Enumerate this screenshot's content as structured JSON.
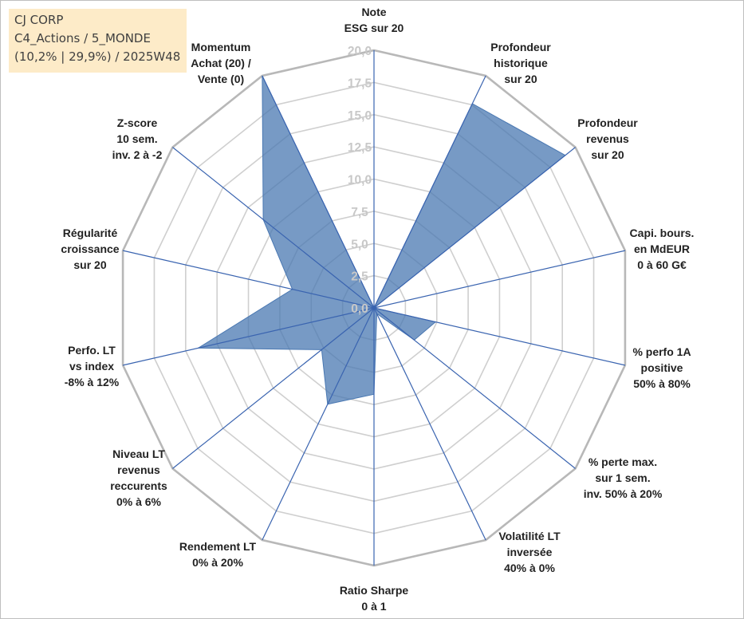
{
  "info_box": {
    "line1": "CJ CORP",
    "line2": "C4_Actions / 5_MONDE",
    "line3": "(10,2% | 29,9%) / 2025W48"
  },
  "chart_data": {
    "type": "radar",
    "title": "",
    "rmax": 20,
    "ticks": [
      "0,0",
      "2,5",
      "5,0",
      "7,5",
      "10,0",
      "12,5",
      "15,0",
      "17,5",
      "20,0"
    ],
    "tick_values": [
      0,
      2.5,
      5,
      7.5,
      10,
      12.5,
      15,
      17.5,
      20
    ],
    "gridlines": true,
    "axes": [
      {
        "label": [
          "Note",
          "ESG sur 20"
        ],
        "value": 0
      },
      {
        "label": [
          "Profondeur",
          "historique",
          "sur 20"
        ],
        "value": 17.6
      },
      {
        "label": [
          "Profondeur",
          "revenus",
          "sur 20"
        ],
        "value": 19
      },
      {
        "label": [
          "Capi. bours.",
          "en MdEUR",
          "0 à 60 G€"
        ],
        "value": 0
      },
      {
        "label": [
          "% perfo 1A",
          "positive",
          "50% à 80%"
        ],
        "value": 4.9
      },
      {
        "label": [
          "% perte max.",
          "sur 1 sem.",
          "inv. 50% à 20%"
        ],
        "value": 4
      },
      {
        "label": [
          "Volatilité LT",
          "inversée",
          "40% à 0%"
        ],
        "value": 0.5
      },
      {
        "label": [
          "Ratio Sharpe",
          "0 à 1"
        ],
        "value": 6.7
      },
      {
        "label": [
          "Rendement LT",
          "0% à 20%"
        ],
        "value": 8.3
      },
      {
        "label": [
          "Niveau LT",
          "revenus",
          "reccurents",
          "0% à 6%"
        ],
        "value": 5.2
      },
      {
        "label": [
          "Perfo. LT",
          "vs index",
          "-8% à 12%"
        ],
        "value": 14
      },
      {
        "label": [
          "Régularité",
          "croissance",
          "sur 20"
        ],
        "value": 6.5
      },
      {
        "label": [
          "Z-score",
          "10 sem.",
          "inv. 2 à -2"
        ],
        "value": 11
      },
      {
        "label": [
          "Momentum",
          "Achat (20) /",
          "Vente (0)"
        ],
        "value": 20
      }
    ],
    "colors": {
      "fill": "#4a78b2",
      "fill_opacity": 0.75,
      "axis_line": "#3a64b0",
      "grid_outer": "#b8b8b8",
      "grid_inner": "#cfcfcf"
    }
  }
}
